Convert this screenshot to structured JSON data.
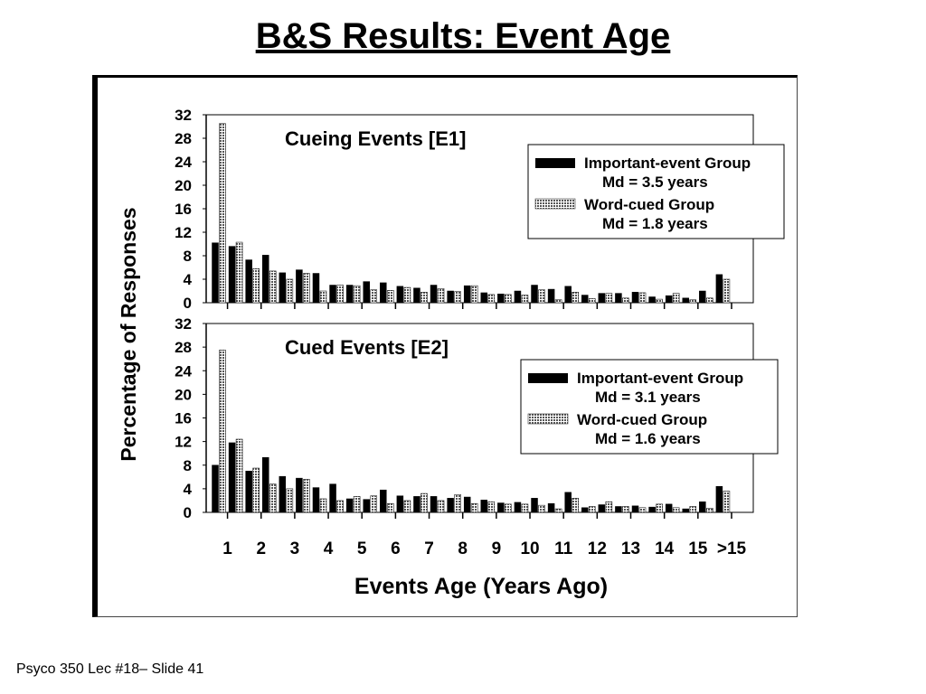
{
  "slide": {
    "title": "B&S Results: Event Age",
    "footer": "Psyco 350 Lec #18– Slide 41"
  },
  "chart_data": {
    "type": "bar",
    "ylabel": "Percentage of Responses",
    "xlabel": "Events Age (Years Ago)",
    "x_ticks": [
      "1",
      "2",
      "3",
      "4",
      "5",
      "6",
      "7",
      "8",
      "9",
      "10",
      "11",
      "12",
      "13",
      "14",
      "15",
      ">15"
    ],
    "yticks": [
      0,
      4,
      8,
      12,
      16,
      20,
      24,
      28,
      32
    ],
    "ylim": [
      0,
      32
    ],
    "grid": false,
    "legend_placement": "top-right",
    "colors": {
      "important": "#000000",
      "word_cued": "#9a9a9a"
    },
    "panels": [
      {
        "title": "Cueing Events [E1]",
        "legend": {
          "series1": "Important-event Group",
          "series1_md": "Md = 3.5 years",
          "series2": "Word-cued Group",
          "series2_md": "Md = 1.8 years"
        },
        "series": [
          {
            "name": "Important-event Group",
            "values": [
              10.2,
              9.6,
              7.3,
              8.1,
              5.1,
              5.6,
              5.0,
              3.0,
              3.0,
              3.6,
              3.4,
              2.8,
              2.5,
              3.0,
              2.0,
              2.9,
              1.7,
              1.5,
              2.0,
              3.0,
              2.3,
              2.8,
              1.3,
              1.6,
              1.6,
              1.8,
              1.0,
              1.2,
              0.8,
              2.0,
              4.8
            ]
          },
          {
            "name": "Word-cued Group",
            "values": [
              30.5,
              10.3,
              5.8,
              5.4,
              4.0,
              5.0,
              2.0,
              3.0,
              2.9,
              2.2,
              2.1,
              2.6,
              1.8,
              2.4,
              1.9,
              2.9,
              1.4,
              1.4,
              1.3,
              2.2,
              0.5,
              1.8,
              0.7,
              1.6,
              0.8,
              1.7,
              0.6,
              1.6,
              0.5,
              0.8,
              4.0
            ]
          }
        ]
      },
      {
        "title": "Cued Events [E2]",
        "legend": {
          "series1": "Important-event Group",
          "series1_md": "Md = 3.1 years",
          "series2": "Word-cued Group",
          "series2_md": "Md = 1.6 years"
        },
        "series": [
          {
            "name": "Important-event Group",
            "values": [
              8.0,
              11.8,
              7.0,
              9.3,
              6.1,
              5.8,
              4.2,
              4.8,
              2.3,
              2.2,
              3.8,
              2.8,
              2.7,
              2.7,
              2.4,
              2.6,
              2.1,
              1.6,
              1.7,
              2.4,
              1.5,
              3.4,
              0.8,
              1.3,
              1.0,
              1.1,
              0.9,
              1.4,
              0.6,
              1.8,
              4.4
            ]
          },
          {
            "name": "Word-cued Group",
            "values": [
              27.5,
              12.4,
              7.5,
              4.8,
              4.0,
              5.6,
              2.3,
              2.0,
              2.7,
              2.8,
              1.5,
              2.0,
              3.2,
              2.0,
              3.0,
              1.5,
              1.8,
              1.4,
              1.4,
              1.2,
              0.6,
              2.4,
              1.0,
              1.8,
              1.0,
              0.8,
              1.4,
              0.8,
              1.0,
              0.7,
              3.6
            ]
          }
        ]
      }
    ]
  }
}
